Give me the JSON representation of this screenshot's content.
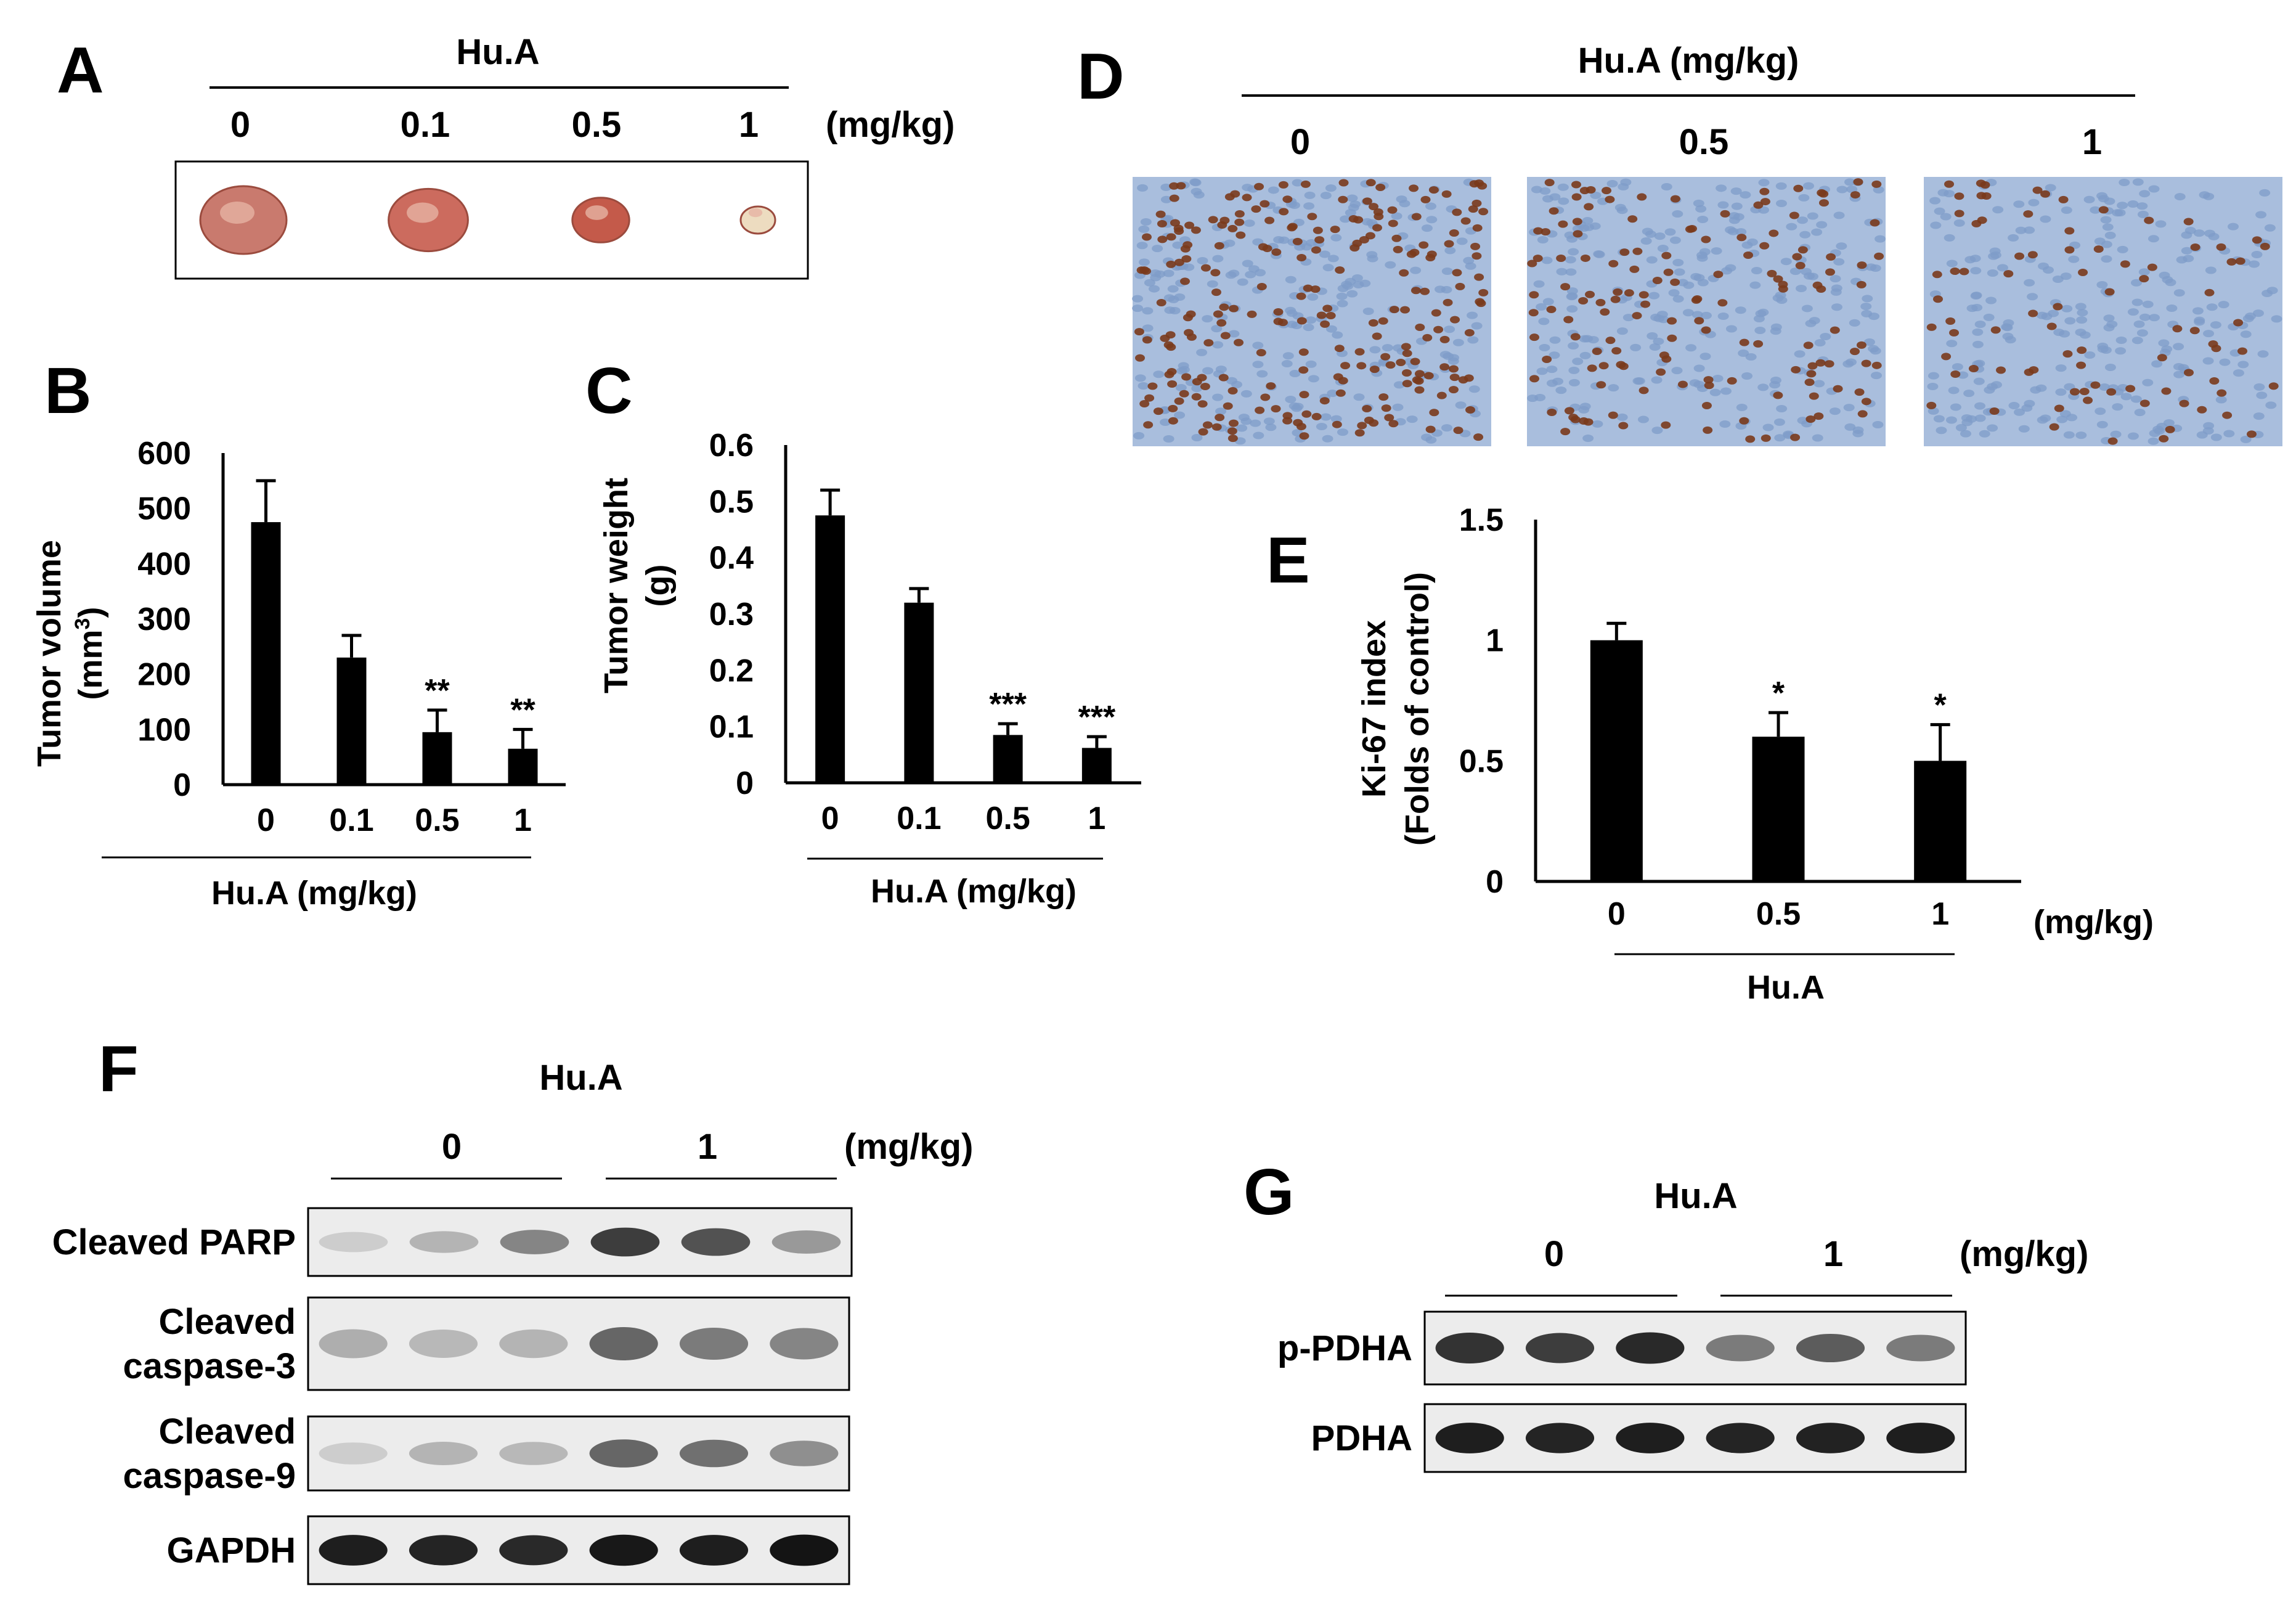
{
  "panels": {
    "A": {
      "letter": "A",
      "group_label": "Hu.A",
      "doses": [
        "0",
        "0.1",
        "0.5",
        "1"
      ],
      "unit": "(mg/kg)",
      "tumor_sizes": [
        1.0,
        0.92,
        0.66,
        0.4
      ]
    },
    "D": {
      "letter": "D",
      "group_label": "Hu.A (mg/kg)",
      "doses": [
        "0",
        "0.5",
        "1"
      ],
      "staining_density": [
        1.0,
        0.6,
        0.35
      ]
    },
    "F": {
      "letter": "F",
      "group_label": "Hu.A",
      "groups": [
        "0",
        "1"
      ],
      "unit": "(mg/kg)",
      "blots": [
        {
          "label_lines": [
            "Cleaved PARP"
          ],
          "intensity": [
            0.1,
            0.22,
            0.45,
            0.8,
            0.7,
            0.35
          ]
        },
        {
          "label_lines": [
            "Cleaved",
            "caspase-3"
          ],
          "intensity": [
            0.25,
            0.2,
            0.22,
            0.6,
            0.5,
            0.45
          ]
        },
        {
          "label_lines": [
            "Cleaved",
            "caspase-9"
          ],
          "intensity": [
            0.1,
            0.22,
            0.2,
            0.6,
            0.55,
            0.4
          ]
        },
        {
          "label_lines": [
            "GAPDH"
          ],
          "intensity": [
            0.95,
            0.92,
            0.9,
            0.98,
            0.95,
            1.0
          ]
        }
      ]
    },
    "G": {
      "letter": "G",
      "group_label": "Hu.A",
      "groups": [
        "0",
        "1"
      ],
      "unit": "(mg/kg)",
      "blots": [
        {
          "label_lines": [
            "p-PDHA"
          ],
          "intensity": [
            0.85,
            0.8,
            0.9,
            0.5,
            0.65,
            0.5
          ]
        },
        {
          "label_lines": [
            "PDHA"
          ],
          "intensity": [
            0.95,
            0.92,
            0.95,
            0.92,
            0.93,
            0.95
          ]
        }
      ]
    }
  },
  "chart_data": [
    {
      "panel": "B",
      "type": "bar",
      "categories": [
        "0",
        "0.1",
        "0.5",
        "1"
      ],
      "values": [
        475,
        230,
        95,
        65
      ],
      "errors": [
        75,
        40,
        40,
        35
      ],
      "significance": [
        "",
        "",
        "**",
        "**"
      ],
      "ylim": [
        0,
        600
      ],
      "yticks": [
        "0",
        "100",
        "200",
        "300",
        "400",
        "500",
        "600"
      ],
      "ytick_values": [
        0,
        100,
        200,
        300,
        400,
        500,
        600
      ],
      "ylabel": "Tumor volume",
      "ylabel_unit_pre": "(mm",
      "ylabel_unit_sup": "3",
      "ylabel_unit_post": ")",
      "xlabel": "Hu.A (mg/kg)",
      "color": "#000000"
    },
    {
      "panel": "C",
      "type": "bar",
      "categories": [
        "0",
        "0.1",
        "0.5",
        "1"
      ],
      "values": [
        0.475,
        0.32,
        0.085,
        0.062
      ],
      "errors": [
        0.045,
        0.025,
        0.02,
        0.02
      ],
      "significance": [
        "",
        "",
        "***",
        "***"
      ],
      "ylim": [
        0,
        0.6
      ],
      "yticks": [
        "0",
        "0.1",
        "0.2",
        "0.3",
        "0.4",
        "0.5",
        "0.6"
      ],
      "ytick_values": [
        0,
        0.1,
        0.2,
        0.3,
        0.4,
        0.5,
        0.6
      ],
      "ylabel": "Tumor weight",
      "ylabel_unit": "(g)",
      "xlabel": "Hu.A (mg/kg)",
      "color": "#000000"
    },
    {
      "panel": "E",
      "type": "bar",
      "categories": [
        "0",
        "0.5",
        "1"
      ],
      "values": [
        1.0,
        0.6,
        0.5
      ],
      "errors": [
        0.07,
        0.1,
        0.15
      ],
      "significance": [
        "",
        "*",
        "*"
      ],
      "ylim": [
        0,
        1.5
      ],
      "yticks": [
        "0",
        "0.5",
        "1",
        "1.5"
      ],
      "ytick_values": [
        0,
        0.5,
        1,
        1.5
      ],
      "ylabel": "Ki-67 index",
      "ylabel_unit": "(Folds of control)",
      "xlabel": "Hu.A",
      "x_unit": "(mg/kg)",
      "color": "#000000"
    }
  ]
}
